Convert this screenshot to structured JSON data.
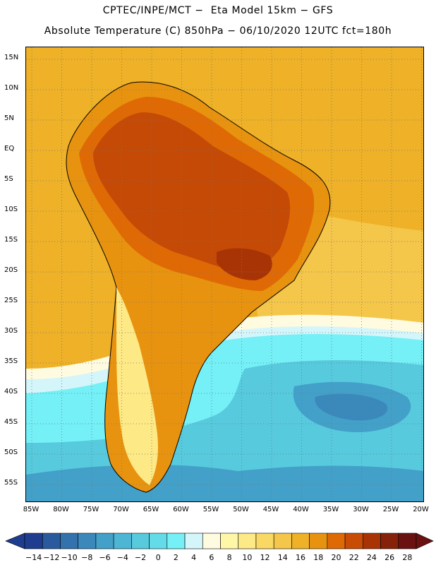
{
  "title": {
    "line1": "CPTEC/INPE/MCT −  Eta Model 15km − GFS",
    "line2": "Absolute Temperature (C) 850hPa − 06/10/2020 12UTC fct=180h"
  },
  "latitudes": [
    "15N",
    "10N",
    "5N",
    "EQ",
    "5S",
    "10S",
    "15S",
    "20S",
    "25S",
    "30S",
    "35S",
    "40S",
    "45S",
    "50S",
    "55S"
  ],
  "longitudes": [
    "85W",
    "80W",
    "75W",
    "70W",
    "65W",
    "60W",
    "55W",
    "50W",
    "45W",
    "40W",
    "35W",
    "30W",
    "25W",
    "20W"
  ],
  "colorbar": {
    "labels": [
      "-14",
      "-12",
      "-10",
      "-8",
      "-6",
      "-4",
      "-2",
      "0",
      "2",
      "4",
      "6",
      "8",
      "10",
      "12",
      "14",
      "16",
      "18",
      "20",
      "22",
      "24",
      "26",
      "28"
    ],
    "colors": [
      "#1f3d8f",
      "#2a5a9e",
      "#3372ad",
      "#3b88bb",
      "#43a0c8",
      "#4cb6d4",
      "#57cade",
      "#63dbe9",
      "#74f0f6",
      "#d4f6fb",
      "#fffbe0",
      "#fff7a8",
      "#fde985",
      "#f9d964",
      "#f4c64a",
      "#eeb128",
      "#e8930f",
      "#df6a05",
      "#c94c04",
      "#a83406",
      "#862209",
      "#6a1212"
    ]
  },
  "map": {
    "colors": {
      "very_hot": "#c44a06",
      "hot": "#df6a05",
      "warm": "#e8930f",
      "mid": "#eeb128",
      "mild": "#f4c64a",
      "cool_yellow": "#fde985",
      "pale": "#fffbe0",
      "icy": "#d4f6fb",
      "cyan": "#74f0f6",
      "teal": "#57cade",
      "blue": "#43a0c8",
      "deep_blue": "#3b88bb"
    }
  }
}
